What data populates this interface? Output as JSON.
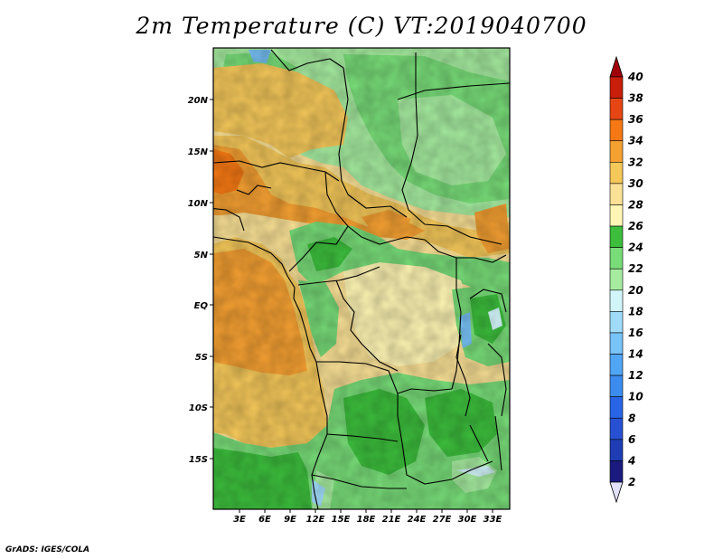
{
  "title": "2m Temperature (C) VT:2019040700",
  "credit": "GrADS: IGES/COLA",
  "map": {
    "lon_labels": [
      "3E",
      "6E",
      "9E",
      "12E",
      "15E",
      "18E",
      "21E",
      "24E",
      "27E",
      "30E",
      "33E"
    ],
    "lat_labels": [
      "20N",
      "15N",
      "10N",
      "5N",
      "EQ",
      "5S",
      "10S",
      "15S"
    ]
  },
  "colorbar": {
    "labels": [
      "2",
      "4",
      "6",
      "8",
      "10",
      "12",
      "14",
      "16",
      "18",
      "20",
      "22",
      "24",
      "26",
      "28",
      "30",
      "32",
      "34",
      "36",
      "38",
      "40"
    ],
    "colors": [
      "#1a1a80",
      "#1e3cb4",
      "#2850d2",
      "#2864e6",
      "#3c8cf0",
      "#50a5f5",
      "#78c3f8",
      "#a0dcfa",
      "#d2f5fa",
      "#a6eca0",
      "#78dc78",
      "#3cbe3c",
      "#fff5b4",
      "#fae196",
      "#f5c85a",
      "#f5a032",
      "#f57814",
      "#e64614",
      "#c81e0a",
      "#a0000a"
    ],
    "under_color": "#e1e1fa",
    "over_color": "#a0000a"
  }
}
